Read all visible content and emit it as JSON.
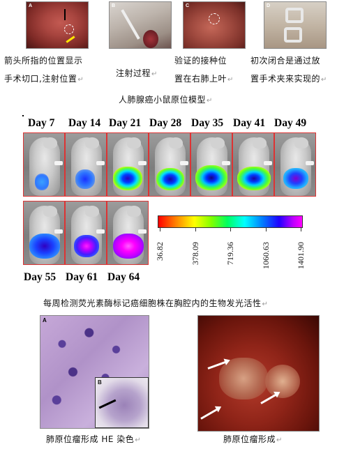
{
  "top": {
    "photos": [
      {
        "letter": "A"
      },
      {
        "letter": "B"
      },
      {
        "letter": "C"
      },
      {
        "letter": "D"
      }
    ],
    "captions": {
      "a1": "箭头所指的位置显示",
      "a2": "手术切口,注射位置",
      "b": "注射过程",
      "c1": "验证的接种位",
      "c2": "置在右肺上叶",
      "d1": "初次闭合是通过放",
      "d2": "置手术夹来实现的"
    },
    "title": "人肺腺癌小鼠原位模型",
    "return_mark": "↵"
  },
  "imaging": {
    "days_row1": [
      "Day 7",
      "Day 14",
      "Day 21",
      "Day 28",
      "Day 35",
      "Day 41",
      "Day 49"
    ],
    "days_row2": [
      "Day 55",
      "Day 61",
      "Day 64"
    ],
    "scale_labels": [
      "36.82",
      "378.09",
      "719.36",
      "1060.63",
      "1401.90"
    ],
    "caption": "每周检测荧光素酶标记癌细胞株在胸腔内的生物发光活性"
  },
  "bottom": {
    "left_letter": "A",
    "inset_letter": "B",
    "left_caption": "肺原位瘤形成 HE 染色",
    "right_caption": "肺原位瘤形成"
  }
}
